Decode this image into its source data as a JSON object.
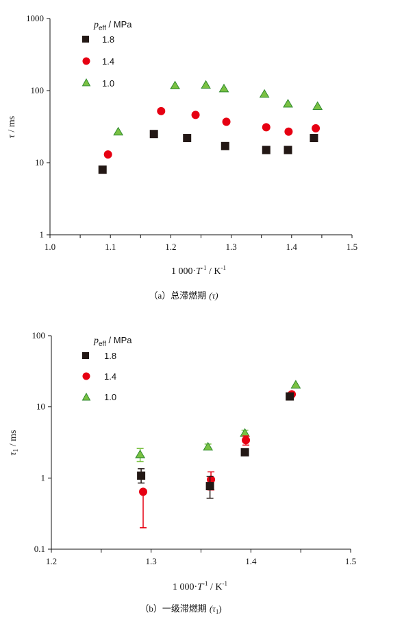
{
  "colors": {
    "series_1_8": "#231815",
    "series_1_4": "#e60012",
    "series_1_0": "#7ac143",
    "series_1_0_edge": "#2f8a2f"
  },
  "chart_data": [
    {
      "type": "scatter",
      "id": "a",
      "caption_prefix": "（a）总滞燃期",
      "caption_symbol": "(τ)",
      "xlabel_prefix": "1 000·",
      "xlabel_T": "T",
      "xlabel_exp": "-1",
      "xlabel_unit": " / K",
      "xlabel_unit_exp": "-1",
      "ylabel_sym": "τ",
      "ylabel_unit": " / ms",
      "yscale": "log",
      "xlim": [
        1.0,
        1.5
      ],
      "ylim": [
        1,
        1000
      ],
      "x_ticks": [
        "1.0",
        "1.1",
        "1.2",
        "1.3",
        "1.4",
        "1.5"
      ],
      "y_ticks": [
        "1",
        "10",
        "100",
        "1000"
      ],
      "legend_title_p": "p",
      "legend_title_sub": "eff",
      "legend_title_unit": " / MPa",
      "series": [
        {
          "name": "1.8",
          "marker": "square",
          "color": "#231815",
          "x": [
            1.087,
            1.172,
            1.227,
            1.29,
            1.358,
            1.394,
            1.437
          ],
          "y": [
            8,
            25,
            22,
            17,
            15,
            15,
            22
          ]
        },
        {
          "name": "1.4",
          "marker": "circle",
          "color": "#e60012",
          "x": [
            1.096,
            1.184,
            1.241,
            1.292,
            1.358,
            1.395,
            1.44
          ],
          "y": [
            13,
            52,
            46,
            37,
            31,
            27,
            30
          ]
        },
        {
          "name": "1.0",
          "marker": "triangle",
          "color": "#7ac143",
          "x": [
            1.113,
            1.207,
            1.258,
            1.288,
            1.355,
            1.394,
            1.443
          ],
          "y": [
            27,
            118,
            120,
            107,
            90,
            66,
            61
          ]
        }
      ]
    },
    {
      "type": "scatter",
      "id": "b",
      "caption_prefix": "（b）一级滞燃期",
      "caption_symbol": "(τ",
      "caption_sub": "1",
      "caption_end": ")",
      "xlabel_prefix": "1 000·",
      "xlabel_T": "T",
      "xlabel_exp": "-1",
      "xlabel_unit": " / K",
      "xlabel_unit_exp": "-1",
      "ylabel_sym": "τ",
      "ylabel_sub": "1",
      "ylabel_unit": " / ms",
      "yscale": "log",
      "xlim": [
        1.2,
        1.5
      ],
      "ylim": [
        0.1,
        100
      ],
      "x_ticks": [
        "1.2",
        "1.3",
        "1.4",
        "1.5"
      ],
      "y_ticks": [
        "0.1",
        "1",
        "10",
        "100"
      ],
      "legend_title_p": "p",
      "legend_title_sub": "eff",
      "legend_title_unit": " / MPa",
      "series": [
        {
          "name": "1.8",
          "marker": "square",
          "color": "#231815",
          "x": [
            1.29,
            1.359,
            1.394,
            1.439
          ],
          "y": [
            1.08,
            0.77,
            2.3,
            14
          ],
          "err_low": [
            0.85,
            0.52,
            2.3,
            14
          ],
          "err_high": [
            1.35,
            1.05,
            2.3,
            14
          ]
        },
        {
          "name": "1.4",
          "marker": "circle",
          "color": "#e60012",
          "x": [
            1.292,
            1.36,
            1.395,
            1.441
          ],
          "y": [
            0.64,
            0.95,
            3.4,
            15
          ],
          "err_low": [
            0.2,
            0.68,
            2.9,
            15
          ],
          "err_high": [
            0.64,
            1.22,
            3.9,
            15
          ]
        },
        {
          "name": "1.0",
          "marker": "triangle",
          "color": "#7ac143",
          "x": [
            1.289,
            1.357,
            1.394,
            1.445
          ],
          "y": [
            2.15,
            2.75,
            4.3,
            20.5
          ],
          "err_low": [
            1.7,
            2.55,
            3.9,
            20.5
          ],
          "err_high": [
            2.6,
            3.0,
            4.7,
            20.5
          ]
        }
      ]
    }
  ]
}
